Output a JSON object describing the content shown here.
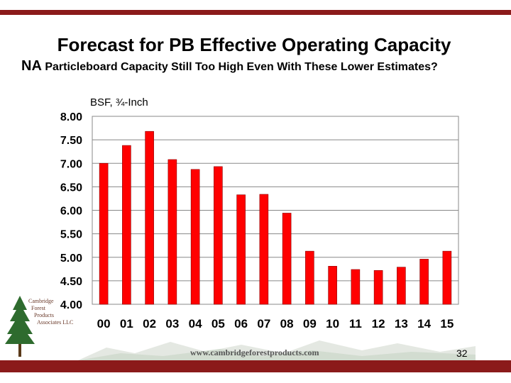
{
  "slide": {
    "title": "Forecast for PB Effective Operating Capacity",
    "subtitle_lead": "NA",
    "subtitle_rest": " Particleboard Capacity Still Too High Even With These Lower Estimates?",
    "footer_url": "www.cambridgeforestproducts.com",
    "page_number": "32",
    "logo_lines": [
      "Cambridge",
      "Forest",
      "Products",
      "Associates LLC"
    ]
  },
  "colors": {
    "bar": "#ff0000",
    "bar_stroke": "#8b0000",
    "accent": "#8b1a1a",
    "grid": "#888888"
  },
  "chart_data": {
    "type": "bar",
    "title": "Forecast for PB Effective Operating Capacity",
    "ylabel": "BSF, ¾-Inch",
    "xlabel": "",
    "ylim": [
      4.0,
      8.0
    ],
    "yticks": [
      "4.00",
      "4.50",
      "5.00",
      "5.50",
      "6.00",
      "6.50",
      "7.00",
      "7.50",
      "8.00"
    ],
    "categories": [
      "00",
      "01",
      "02",
      "03",
      "04",
      "05",
      "06",
      "07",
      "08",
      "09",
      "10",
      "11",
      "12",
      "13",
      "14",
      "15"
    ],
    "values": [
      7.0,
      7.38,
      7.68,
      7.08,
      6.87,
      6.93,
      6.33,
      6.34,
      5.94,
      5.13,
      4.81,
      4.74,
      4.72,
      4.79,
      4.96,
      5.13
    ],
    "grid": true,
    "legend": "none"
  }
}
